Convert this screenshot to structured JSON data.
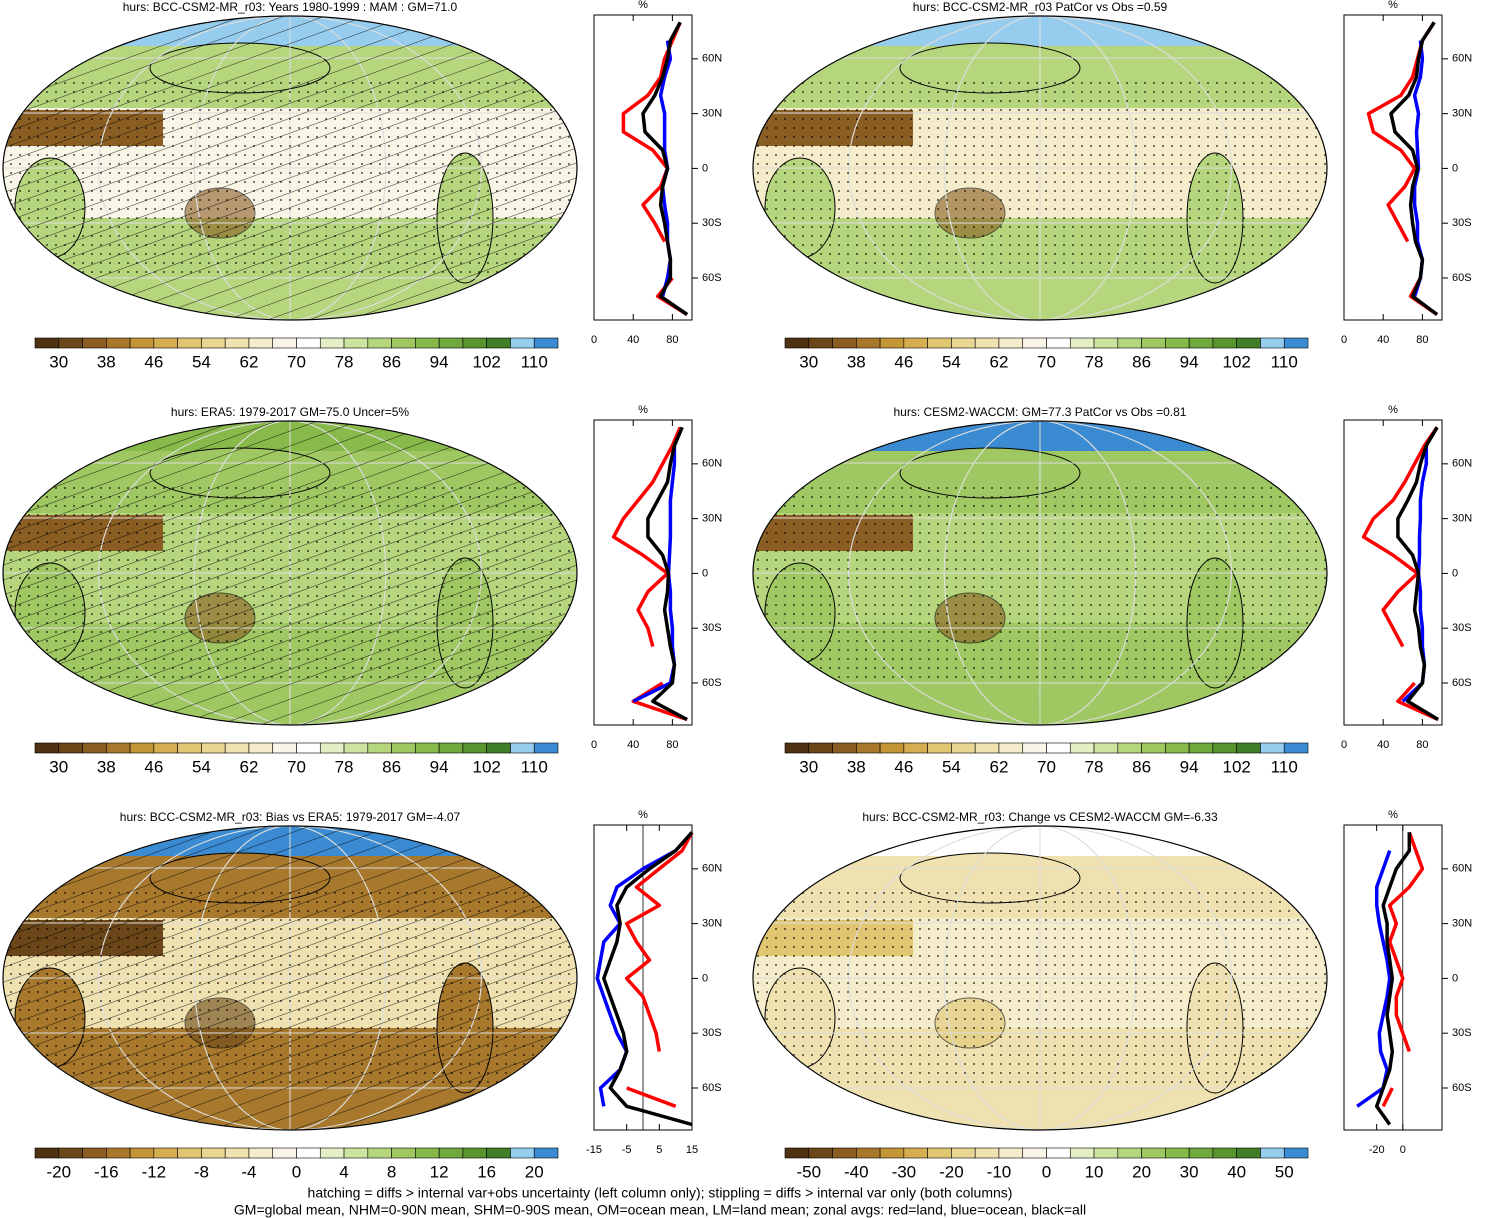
{
  "chart_data": [
    {
      "type": "line",
      "title": "hurs: BCC-CSM2-MR_r03: Years 1980-1999 : MAM : GM=71.0",
      "xlabel": "%",
      "xlim": [
        0,
        100
      ],
      "xticks": [
        0,
        40,
        80
      ],
      "ylim": [
        -83,
        84
      ],
      "yticks": [
        {
          "value": 60,
          "label": "60N"
        },
        {
          "value": 30,
          "label": "30N"
        },
        0,
        {
          "value": -30,
          "label": "30S"
        },
        {
          "value": -60,
          "label": "60S"
        }
      ],
      "lat": [
        80,
        70,
        60,
        50,
        40,
        30,
        20,
        10,
        0,
        -10,
        -20,
        -30,
        -40,
        -50,
        -60,
        -70,
        -80
      ],
      "series": [
        {
          "color": "#ff0000",
          "values": [
            88,
            80,
            72,
            68,
            55,
            30,
            30,
            60,
            75,
            68,
            50,
            62,
            72,
            null,
            80,
            65,
            95
          ]
        },
        {
          "color": "#0000ff",
          "values": [
            null,
            75,
            78,
            72,
            68,
            72,
            72,
            72,
            75,
            70,
            72,
            75,
            75,
            78,
            75,
            70,
            null
          ]
        },
        {
          "color": "#000000",
          "values": [
            88,
            78,
            75,
            70,
            62,
            50,
            52,
            70,
            75,
            70,
            68,
            72,
            75,
            78,
            78,
            68,
            95
          ]
        }
      ],
      "colorbar_labels": [
        30,
        38,
        46,
        54,
        62,
        70,
        78,
        86,
        94,
        102,
        110
      ]
    },
    {
      "type": "line",
      "title": "hurs: BCC-CSM2-MR_r03 PatCor vs Obs =0.59",
      "xlabel": "%",
      "xlim": [
        0,
        100
      ],
      "xticks": [
        0,
        40,
        80
      ],
      "ylim": [
        -83,
        84
      ],
      "yticks": [
        {
          "value": 60,
          "label": "60N"
        },
        {
          "value": 30,
          "label": "30N"
        },
        0,
        {
          "value": -30,
          "label": "30S"
        },
        {
          "value": -60,
          "label": "60S"
        }
      ],
      "lat": [
        80,
        70,
        60,
        50,
        40,
        30,
        20,
        10,
        0,
        -10,
        -20,
        -30,
        -40,
        -50,
        -60,
        -70,
        -80
      ],
      "series": [
        {
          "color": "#ff0000",
          "values": [
            92,
            80,
            75,
            70,
            58,
            25,
            30,
            58,
            72,
            62,
            45,
            55,
            65,
            null,
            78,
            68,
            95
          ]
        },
        {
          "color": "#0000ff",
          "values": [
            null,
            78,
            80,
            78,
            72,
            76,
            74,
            75,
            76,
            72,
            72,
            75,
            75,
            80,
            78,
            72,
            null
          ]
        },
        {
          "color": "#000000",
          "values": [
            92,
            80,
            76,
            74,
            66,
            48,
            52,
            70,
            75,
            70,
            68,
            70,
            73,
            80,
            78,
            70,
            95
          ]
        }
      ],
      "colorbar_labels": [
        30,
        38,
        46,
        54,
        62,
        70,
        78,
        86,
        94,
        102,
        110
      ]
    },
    {
      "type": "line",
      "title": "hurs: ERA5: 1979-2017 GM=75.0 Uncer=5%",
      "xlabel": "%",
      "xlim": [
        0,
        100
      ],
      "xticks": [
        0,
        40,
        80
      ],
      "ylim": [
        -83,
        84
      ],
      "yticks": [
        {
          "value": 60,
          "label": "60N"
        },
        {
          "value": 30,
          "label": "30N"
        },
        0,
        {
          "value": -30,
          "label": "30S"
        },
        {
          "value": -60,
          "label": "60S"
        }
      ],
      "lat": [
        80,
        70,
        60,
        50,
        40,
        30,
        20,
        10,
        0,
        -10,
        -20,
        -30,
        -40,
        -50,
        -60,
        -70,
        -80
      ],
      "series": [
        {
          "color": "#ff0000",
          "values": [
            88,
            80,
            70,
            60,
            45,
            30,
            20,
            50,
            75,
            55,
            45,
            55,
            60,
            null,
            70,
            40,
            95
          ]
        },
        {
          "color": "#0000ff",
          "values": [
            null,
            82,
            82,
            80,
            78,
            78,
            78,
            77,
            76,
            78,
            78,
            80,
            80,
            82,
            78,
            40,
            null
          ]
        },
        {
          "color": "#000000",
          "values": [
            90,
            82,
            78,
            75,
            65,
            55,
            55,
            70,
            76,
            75,
            72,
            75,
            78,
            82,
            80,
            60,
            95
          ]
        }
      ],
      "colorbar_labels": [
        30,
        38,
        46,
        54,
        62,
        70,
        78,
        86,
        94,
        102,
        110
      ]
    },
    {
      "type": "line",
      "title": "hurs: CESM2-WACCM: GM=77.3 PatCor vs Obs =0.81",
      "xlabel": "%",
      "xlim": [
        0,
        100
      ],
      "xticks": [
        0,
        40,
        80
      ],
      "ylim": [
        -83,
        84
      ],
      "yticks": [
        {
          "value": 60,
          "label": "60N"
        },
        {
          "value": 30,
          "label": "30N"
        },
        0,
        {
          "value": -30,
          "label": "30S"
        },
        {
          "value": -60,
          "label": "60S"
        }
      ],
      "lat": [
        80,
        70,
        60,
        50,
        40,
        30,
        20,
        10,
        0,
        -10,
        -20,
        -30,
        -40,
        -50,
        -60,
        -70,
        -80
      ],
      "series": [
        {
          "color": "#ff0000",
          "values": [
            95,
            82,
            72,
            62,
            50,
            30,
            20,
            50,
            75,
            55,
            40,
            50,
            60,
            null,
            72,
            55,
            96
          ]
        },
        {
          "color": "#0000ff",
          "values": [
            null,
            84,
            84,
            80,
            78,
            78,
            77,
            77,
            76,
            78,
            78,
            80,
            80,
            82,
            80,
            60,
            null
          ]
        },
        {
          "color": "#000000",
          "values": [
            95,
            84,
            78,
            74,
            65,
            55,
            55,
            70,
            76,
            74,
            72,
            76,
            78,
            82,
            80,
            65,
            96
          ]
        }
      ],
      "colorbar_labels": [
        30,
        38,
        46,
        54,
        62,
        70,
        78,
        86,
        94,
        102,
        110
      ]
    },
    {
      "type": "line",
      "title": "hurs: BCC-CSM2-MR_r03: Bias vs ERA5: 1979-2017 GM=-4.07",
      "xlabel": "%",
      "xlim": [
        -15,
        15
      ],
      "xticks": [
        -15,
        -5,
        5,
        15
      ],
      "ylim": [
        -83,
        84
      ],
      "yticks": [
        {
          "value": 60,
          "label": "60N"
        },
        {
          "value": 30,
          "label": "30N"
        },
        0,
        {
          "value": -30,
          "label": "30S"
        },
        {
          "value": -60,
          "label": "60S"
        }
      ],
      "lat": [
        80,
        70,
        60,
        50,
        40,
        30,
        20,
        10,
        0,
        -10,
        -20,
        -30,
        -40,
        -50,
        -60,
        -70,
        -80
      ],
      "series": [
        {
          "color": "#ff0000",
          "values": [
            15,
            12,
            5,
            -2,
            5,
            -5,
            -2,
            2,
            -5,
            0,
            2,
            4,
            5,
            null,
            -5,
            10,
            null
          ]
        },
        {
          "color": "#0000ff",
          "values": [
            null,
            10,
            0,
            -8,
            -10,
            -7,
            -12,
            -13,
            -14,
            -12,
            -10,
            -8,
            -5,
            -7,
            -13,
            -12,
            null
          ]
        },
        {
          "color": "#000000",
          "values": [
            15,
            10,
            2,
            -5,
            -8,
            -7,
            -8,
            -10,
            -12,
            -10,
            -8,
            -6,
            -5,
            -7,
            -10,
            -5,
            15
          ]
        }
      ],
      "colorbar_labels": [
        -20,
        -16,
        -12,
        -8,
        -4,
        0,
        4,
        8,
        12,
        16,
        20
      ]
    },
    {
      "type": "line",
      "title": "hurs: BCC-CSM2-MR_r03: Change vs CESM2-WACCM GM=-6.33",
      "xlabel": "%",
      "xlim": [
        -45,
        30
      ],
      "xticks": [
        -20,
        0
      ],
      "ylim": [
        -83,
        84
      ],
      "yticks": [
        {
          "value": 60,
          "label": "60N"
        },
        {
          "value": 30,
          "label": "30N"
        },
        0,
        {
          "value": -30,
          "label": "30S"
        },
        {
          "value": -60,
          "label": "60S"
        }
      ],
      "lat": [
        80,
        70,
        60,
        50,
        40,
        30,
        20,
        10,
        0,
        -10,
        -20,
        -30,
        -40,
        -50,
        -60,
        -70,
        -80
      ],
      "series": [
        {
          "color": "#ff0000",
          "values": [
            5,
            10,
            15,
            5,
            -10,
            -5,
            -10,
            -5,
            0,
            -5,
            -5,
            0,
            5,
            null,
            -8,
            -15,
            null
          ]
        },
        {
          "color": "#0000ff",
          "values": [
            null,
            -10,
            -15,
            -20,
            -20,
            -18,
            -15,
            -12,
            -10,
            -12,
            -15,
            -18,
            -17,
            -12,
            -15,
            -35,
            null
          ]
        },
        {
          "color": "#000000",
          "values": [
            5,
            5,
            -5,
            -10,
            -15,
            -12,
            -12,
            -10,
            -8,
            -10,
            -12,
            -10,
            -8,
            -10,
            -15,
            -20,
            -10
          ]
        }
      ],
      "colorbar_labels": [
        -50,
        -40,
        -30,
        -20,
        -10,
        0,
        10,
        20,
        30,
        40,
        50
      ]
    }
  ],
  "colorbar_colors": [
    "#4e3212",
    "#6b4618",
    "#8a5d22",
    "#a8792c",
    "#c49537",
    "#d5ae52",
    "#e1c672",
    "#e9d692",
    "#efe2b0",
    "#f4ecca",
    "#f9f6e8",
    "#ffffff",
    "#e5efc6",
    "#cde3a0",
    "#b6d67e",
    "#9fc862",
    "#87b94b",
    "#6fa83c",
    "#58952f",
    "#3f7d27",
    "#96cdee",
    "#3a8bd1"
  ],
  "footer": [
    "hatching = diffs > internal var+obs uncertainty (left column only); stippling = diffs > internal var only (both columns)",
    "GM=global mean, NHM=0-90N mean, SHM=0-90S mean, OM=ocean mean, LM=land mean; zonal avgs: red=land, blue=ocean, black=all"
  ]
}
